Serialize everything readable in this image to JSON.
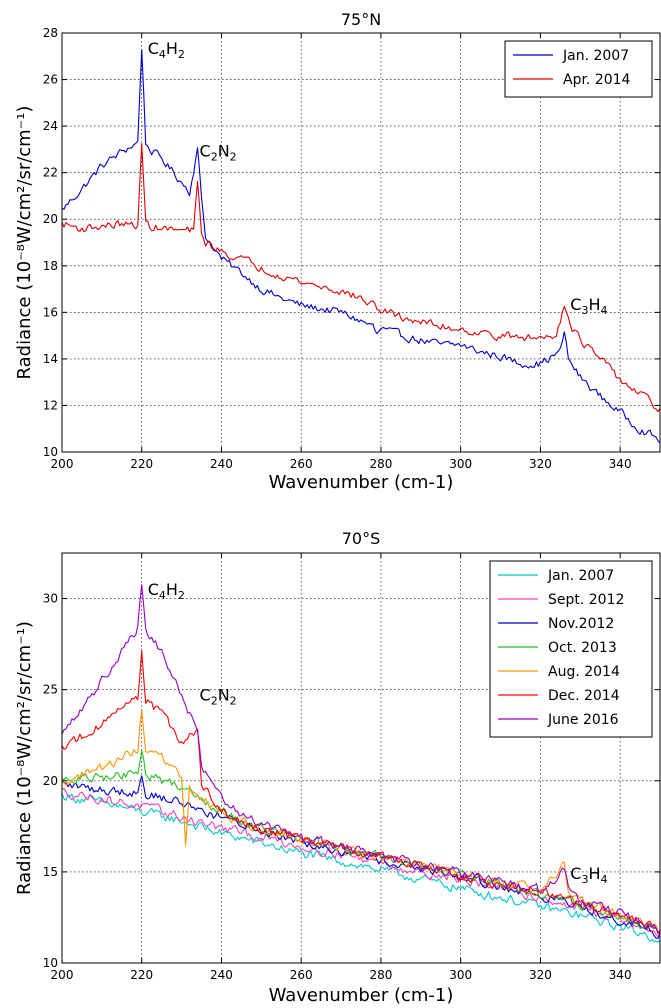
{
  "chart_data": [
    {
      "type": "line",
      "title": "75°N",
      "xlabel": "Wavenumber (cm-1)",
      "ylabel": "Radiance (10⁻⁸W/cm²/sr/cm⁻¹)",
      "xlim": [
        200,
        350
      ],
      "ylim": [
        10,
        28
      ],
      "xticks": [
        200,
        220,
        240,
        260,
        280,
        300,
        320,
        340
      ],
      "yticks": [
        10,
        12,
        14,
        16,
        18,
        20,
        22,
        24,
        26,
        28
      ],
      "grid": true,
      "legend": "top-right",
      "series": [
        {
          "name": "Jan. 2007",
          "color": "#0000cc",
          "x": [
            200,
            205,
            210,
            215,
            218,
            219,
            220,
            221,
            222,
            225,
            230,
            232,
            234,
            235,
            236,
            240,
            245,
            250,
            255,
            260,
            270,
            278,
            279,
            280,
            285,
            290,
            295,
            300,
            305,
            310,
            315,
            320,
            325,
            326,
            327,
            330,
            335,
            340,
            345,
            350
          ],
          "y": [
            20.4,
            21.3,
            22.3,
            22.9,
            23.2,
            23.3,
            27.4,
            23.3,
            23.0,
            22.6,
            21.6,
            21.2,
            23.0,
            20.9,
            19.3,
            18.3,
            17.7,
            17.0,
            16.6,
            16.3,
            16.0,
            15.4,
            15.0,
            15.3,
            15.0,
            14.8,
            14.6,
            14.6,
            14.3,
            14.1,
            13.8,
            13.8,
            14.3,
            15.2,
            14.0,
            13.2,
            12.4,
            11.7,
            11.0,
            10.5
          ]
        },
        {
          "name": "Apr. 2014",
          "color": "#e00000",
          "x": [
            200,
            205,
            210,
            215,
            218,
            219,
            220,
            221,
            222,
            225,
            230,
            233,
            234,
            235,
            236,
            240,
            245,
            250,
            255,
            260,
            265,
            270,
            275,
            280,
            285,
            290,
            295,
            300,
            305,
            310,
            315,
            320,
            324,
            326,
            327,
            328,
            330,
            335,
            340,
            345,
            350
          ],
          "y": [
            19.8,
            19.6,
            19.7,
            19.8,
            19.7,
            19.8,
            23.1,
            19.9,
            19.7,
            19.6,
            19.5,
            19.5,
            21.5,
            19.4,
            19.0,
            18.6,
            18.3,
            17.9,
            17.6,
            17.3,
            17.1,
            16.9,
            16.6,
            16.1,
            15.8,
            15.6,
            15.4,
            15.3,
            15.1,
            15.0,
            14.9,
            14.9,
            15.1,
            16.3,
            15.9,
            15.4,
            14.8,
            14.0,
            13.1,
            12.5,
            11.8
          ]
        }
      ],
      "annotations": [
        {
          "sub": [
            "C",
            "4",
            "H",
            "2"
          ],
          "x": 221,
          "y": 27.1
        },
        {
          "sub": [
            "C",
            "2",
            "N",
            "2"
          ],
          "x": 234,
          "y": 22.7
        },
        {
          "sub": [
            "C",
            "3",
            "H",
            "4"
          ],
          "x": 327,
          "y": 16.1
        }
      ]
    },
    {
      "type": "line",
      "title": "70°S",
      "xlabel": "Wavenumber (cm-1)",
      "ylabel": "Radiance (10⁻⁸W/cm²/sr/cm⁻¹)",
      "xlim": [
        200,
        350
      ],
      "ylim": [
        10,
        32.5
      ],
      "xticks": [
        200,
        220,
        240,
        260,
        280,
        300,
        320,
        340
      ],
      "yticks": [
        10,
        15,
        20,
        25,
        30
      ],
      "grid": true,
      "legend": "top-right",
      "series": [
        {
          "name": "Jan. 2007",
          "color": "#00c8c8",
          "x": [
            200,
            210,
            220,
            230,
            240,
            250,
            260,
            270,
            280,
            290,
            300,
            310,
            320,
            330,
            340,
            350
          ],
          "y": [
            19.2,
            18.8,
            18.3,
            17.8,
            17.1,
            16.6,
            16.0,
            15.6,
            15.1,
            14.6,
            14.1,
            13.6,
            13.1,
            12.6,
            12.0,
            11.3
          ]
        },
        {
          "name": "Sept. 2012",
          "color": "#ff3fb8",
          "x": [
            200,
            210,
            220,
            230,
            240,
            250,
            260,
            270,
            280,
            290,
            300,
            310,
            320,
            330,
            340,
            350
          ],
          "y": [
            19.4,
            19.0,
            18.6,
            18.0,
            17.4,
            16.9,
            16.4,
            16.0,
            15.5,
            15.0,
            14.6,
            14.1,
            13.6,
            13.0,
            12.4,
            11.6
          ]
        },
        {
          "name": "Nov.2012",
          "color": "#0000cc",
          "x": [
            200,
            210,
            219,
            220,
            221,
            230,
            240,
            250,
            260,
            270,
            280,
            290,
            300,
            310,
            320,
            330,
            340,
            350
          ],
          "y": [
            19.8,
            19.5,
            19.4,
            20.2,
            19.3,
            18.8,
            18.0,
            17.3,
            16.7,
            16.2,
            15.7,
            15.2,
            14.7,
            14.2,
            13.7,
            13.1,
            12.4,
            11.6
          ]
        },
        {
          "name": "Oct. 2013",
          "color": "#22c022",
          "x": [
            200,
            210,
            219,
            220,
            221,
            230,
            240,
            250,
            260,
            270,
            280,
            290,
            300,
            310,
            320,
            330,
            340,
            350
          ],
          "y": [
            20.0,
            20.2,
            20.4,
            21.8,
            20.3,
            19.7,
            18.4,
            17.4,
            16.8,
            16.3,
            15.8,
            15.3,
            14.8,
            14.3,
            13.8,
            13.2,
            12.5,
            11.7
          ]
        },
        {
          "name": "Aug. 2014",
          "color": "#ff9400",
          "x": [
            200,
            210,
            219,
            220,
            221,
            225,
            230,
            231,
            232,
            234,
            240,
            250,
            260,
            270,
            280,
            290,
            300,
            310,
            320,
            326,
            327,
            330,
            340,
            350
          ],
          "y": [
            19.9,
            20.7,
            21.7,
            24.1,
            21.5,
            21.2,
            20.2,
            16.4,
            19.6,
            19.2,
            18.2,
            17.3,
            16.8,
            16.3,
            15.8,
            15.3,
            14.9,
            14.4,
            13.9,
            15.4,
            13.8,
            13.4,
            12.6,
            11.8
          ]
        },
        {
          "name": "Dec. 2014",
          "color": "#ff0000",
          "x": [
            200,
            210,
            219,
            220,
            221,
            225,
            230,
            234,
            235,
            240,
            250,
            260,
            270,
            280,
            290,
            300,
            310,
            320,
            330,
            340,
            350
          ],
          "y": [
            21.8,
            23.1,
            24.6,
            27.1,
            24.5,
            23.6,
            22.2,
            22.8,
            19.7,
            18.4,
            17.3,
            16.8,
            16.3,
            15.8,
            15.3,
            14.8,
            14.3,
            13.9,
            13.3,
            12.6,
            11.8
          ]
        },
        {
          "name": "June 2016",
          "color": "#9400cc",
          "x": [
            200,
            205,
            210,
            215,
            219,
            220,
            221,
            225,
            230,
            234,
            235,
            240,
            250,
            260,
            270,
            280,
            290,
            300,
            310,
            320,
            326,
            327,
            330,
            340,
            350
          ],
          "y": [
            22.4,
            24.0,
            25.5,
            27.2,
            28.4,
            30.7,
            28.3,
            27.0,
            24.7,
            22.6,
            20.8,
            18.9,
            17.6,
            16.9,
            16.4,
            15.9,
            15.4,
            14.9,
            14.4,
            14.0,
            15.0,
            14.1,
            13.4,
            12.7,
            11.8
          ]
        }
      ],
      "annotations": [
        {
          "sub": [
            "C",
            "4",
            "H",
            "2"
          ],
          "x": 221,
          "y": 30.2
        },
        {
          "sub": [
            "C",
            "2",
            "N",
            "2"
          ],
          "x": 234,
          "y": 24.4
        },
        {
          "sub": [
            "C",
            "3",
            "H",
            "4"
          ],
          "x": 327,
          "y": 14.6
        }
      ]
    }
  ]
}
